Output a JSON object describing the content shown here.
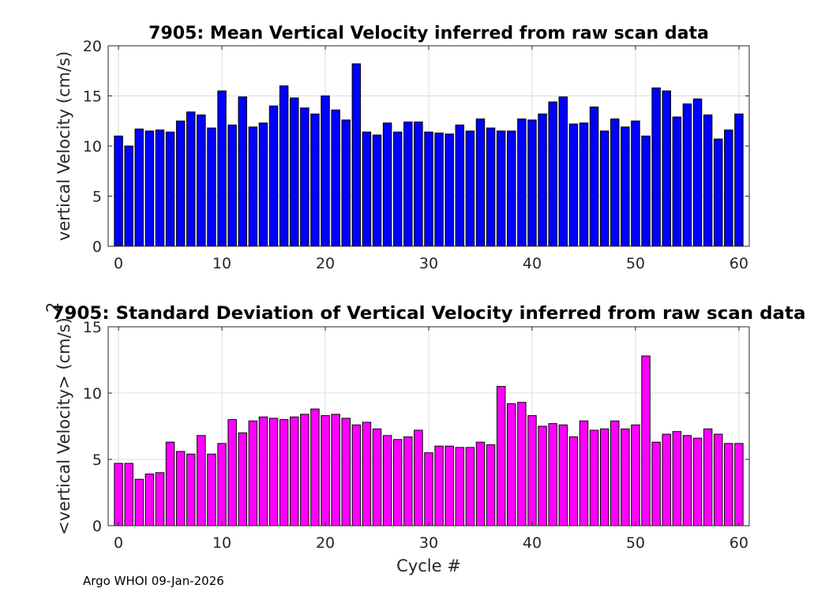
{
  "footer_text": "Argo WHOI 09-Jan-2026",
  "colors": {
    "mean_bar": "#0000ff",
    "std_bar": "#ff00ff",
    "bar_edge": "#000000"
  },
  "chart_data": [
    {
      "type": "bar",
      "title": "7905: Mean Vertical Velocity inferred from raw scan data",
      "xlabel": "",
      "ylabel": "vertical Velocity (cm/s)",
      "xlim": [
        -1,
        61
      ],
      "ylim": [
        0,
        20
      ],
      "xticks": [
        0,
        10,
        20,
        30,
        40,
        50,
        60
      ],
      "yticks": [
        0,
        5,
        10,
        15,
        20
      ],
      "grid": true,
      "x": [
        0,
        1,
        2,
        3,
        4,
        5,
        6,
        7,
        8,
        9,
        10,
        11,
        12,
        13,
        14,
        15,
        16,
        17,
        18,
        19,
        20,
        21,
        22,
        23,
        24,
        25,
        26,
        27,
        28,
        29,
        30,
        31,
        32,
        33,
        34,
        35,
        36,
        37,
        38,
        39,
        40,
        41,
        42,
        43,
        44,
        45,
        46,
        47,
        48,
        49,
        50,
        51,
        52,
        53,
        54,
        55,
        56,
        57,
        58,
        59,
        60
      ],
      "values": [
        11.0,
        10.0,
        11.7,
        11.5,
        11.6,
        11.4,
        12.5,
        13.4,
        13.1,
        11.8,
        15.5,
        12.1,
        14.9,
        11.9,
        12.3,
        14.0,
        16.0,
        14.8,
        13.8,
        13.2,
        15.0,
        13.6,
        12.6,
        18.2,
        11.4,
        11.1,
        12.3,
        11.4,
        12.4,
        12.4,
        11.4,
        11.3,
        11.2,
        12.1,
        11.5,
        12.7,
        11.8,
        11.5,
        11.5,
        12.7,
        12.6,
        13.2,
        14.4,
        14.9,
        12.2,
        12.3,
        13.9,
        11.5,
        12.7,
        11.9,
        12.5,
        11.0,
        15.8,
        15.5,
        12.9,
        14.2,
        14.7,
        13.1,
        10.7,
        11.6,
        13.2
      ]
    },
    {
      "type": "bar",
      "title": "7905: Standard Deviation of Vertical Velocity inferred from raw scan data",
      "xlabel": "Cycle #",
      "ylabel": "<vertical Velocity> (cm/s)",
      "ylabel_superscript": "2",
      "xlim": [
        -1,
        61
      ],
      "ylim": [
        0,
        15
      ],
      "xticks": [
        0,
        10,
        20,
        30,
        40,
        50,
        60
      ],
      "yticks": [
        0,
        5,
        10,
        15
      ],
      "grid": true,
      "x": [
        0,
        1,
        2,
        3,
        4,
        5,
        6,
        7,
        8,
        9,
        10,
        11,
        12,
        13,
        14,
        15,
        16,
        17,
        18,
        19,
        20,
        21,
        22,
        23,
        24,
        25,
        26,
        27,
        28,
        29,
        30,
        31,
        32,
        33,
        34,
        35,
        36,
        37,
        38,
        39,
        40,
        41,
        42,
        43,
        44,
        45,
        46,
        47,
        48,
        49,
        50,
        51,
        52,
        53,
        54,
        55,
        56,
        57,
        58,
        59,
        60
      ],
      "values": [
        4.7,
        4.7,
        3.5,
        3.9,
        4.0,
        6.3,
        5.6,
        5.4,
        6.8,
        5.4,
        6.2,
        8.0,
        7.0,
        7.9,
        8.2,
        8.1,
        8.0,
        8.2,
        8.4,
        8.8,
        8.3,
        8.4,
        8.1,
        7.6,
        7.8,
        7.3,
        6.8,
        6.5,
        6.7,
        7.2,
        5.5,
        6.0,
        6.0,
        5.9,
        5.9,
        6.3,
        6.1,
        10.5,
        9.2,
        9.3,
        8.3,
        7.5,
        7.7,
        7.6,
        6.7,
        7.9,
        7.2,
        7.3,
        7.9,
        7.3,
        7.6,
        12.8,
        6.3,
        6.9,
        7.1,
        6.8,
        6.6,
        7.3,
        6.9,
        6.2,
        6.2
      ]
    }
  ]
}
